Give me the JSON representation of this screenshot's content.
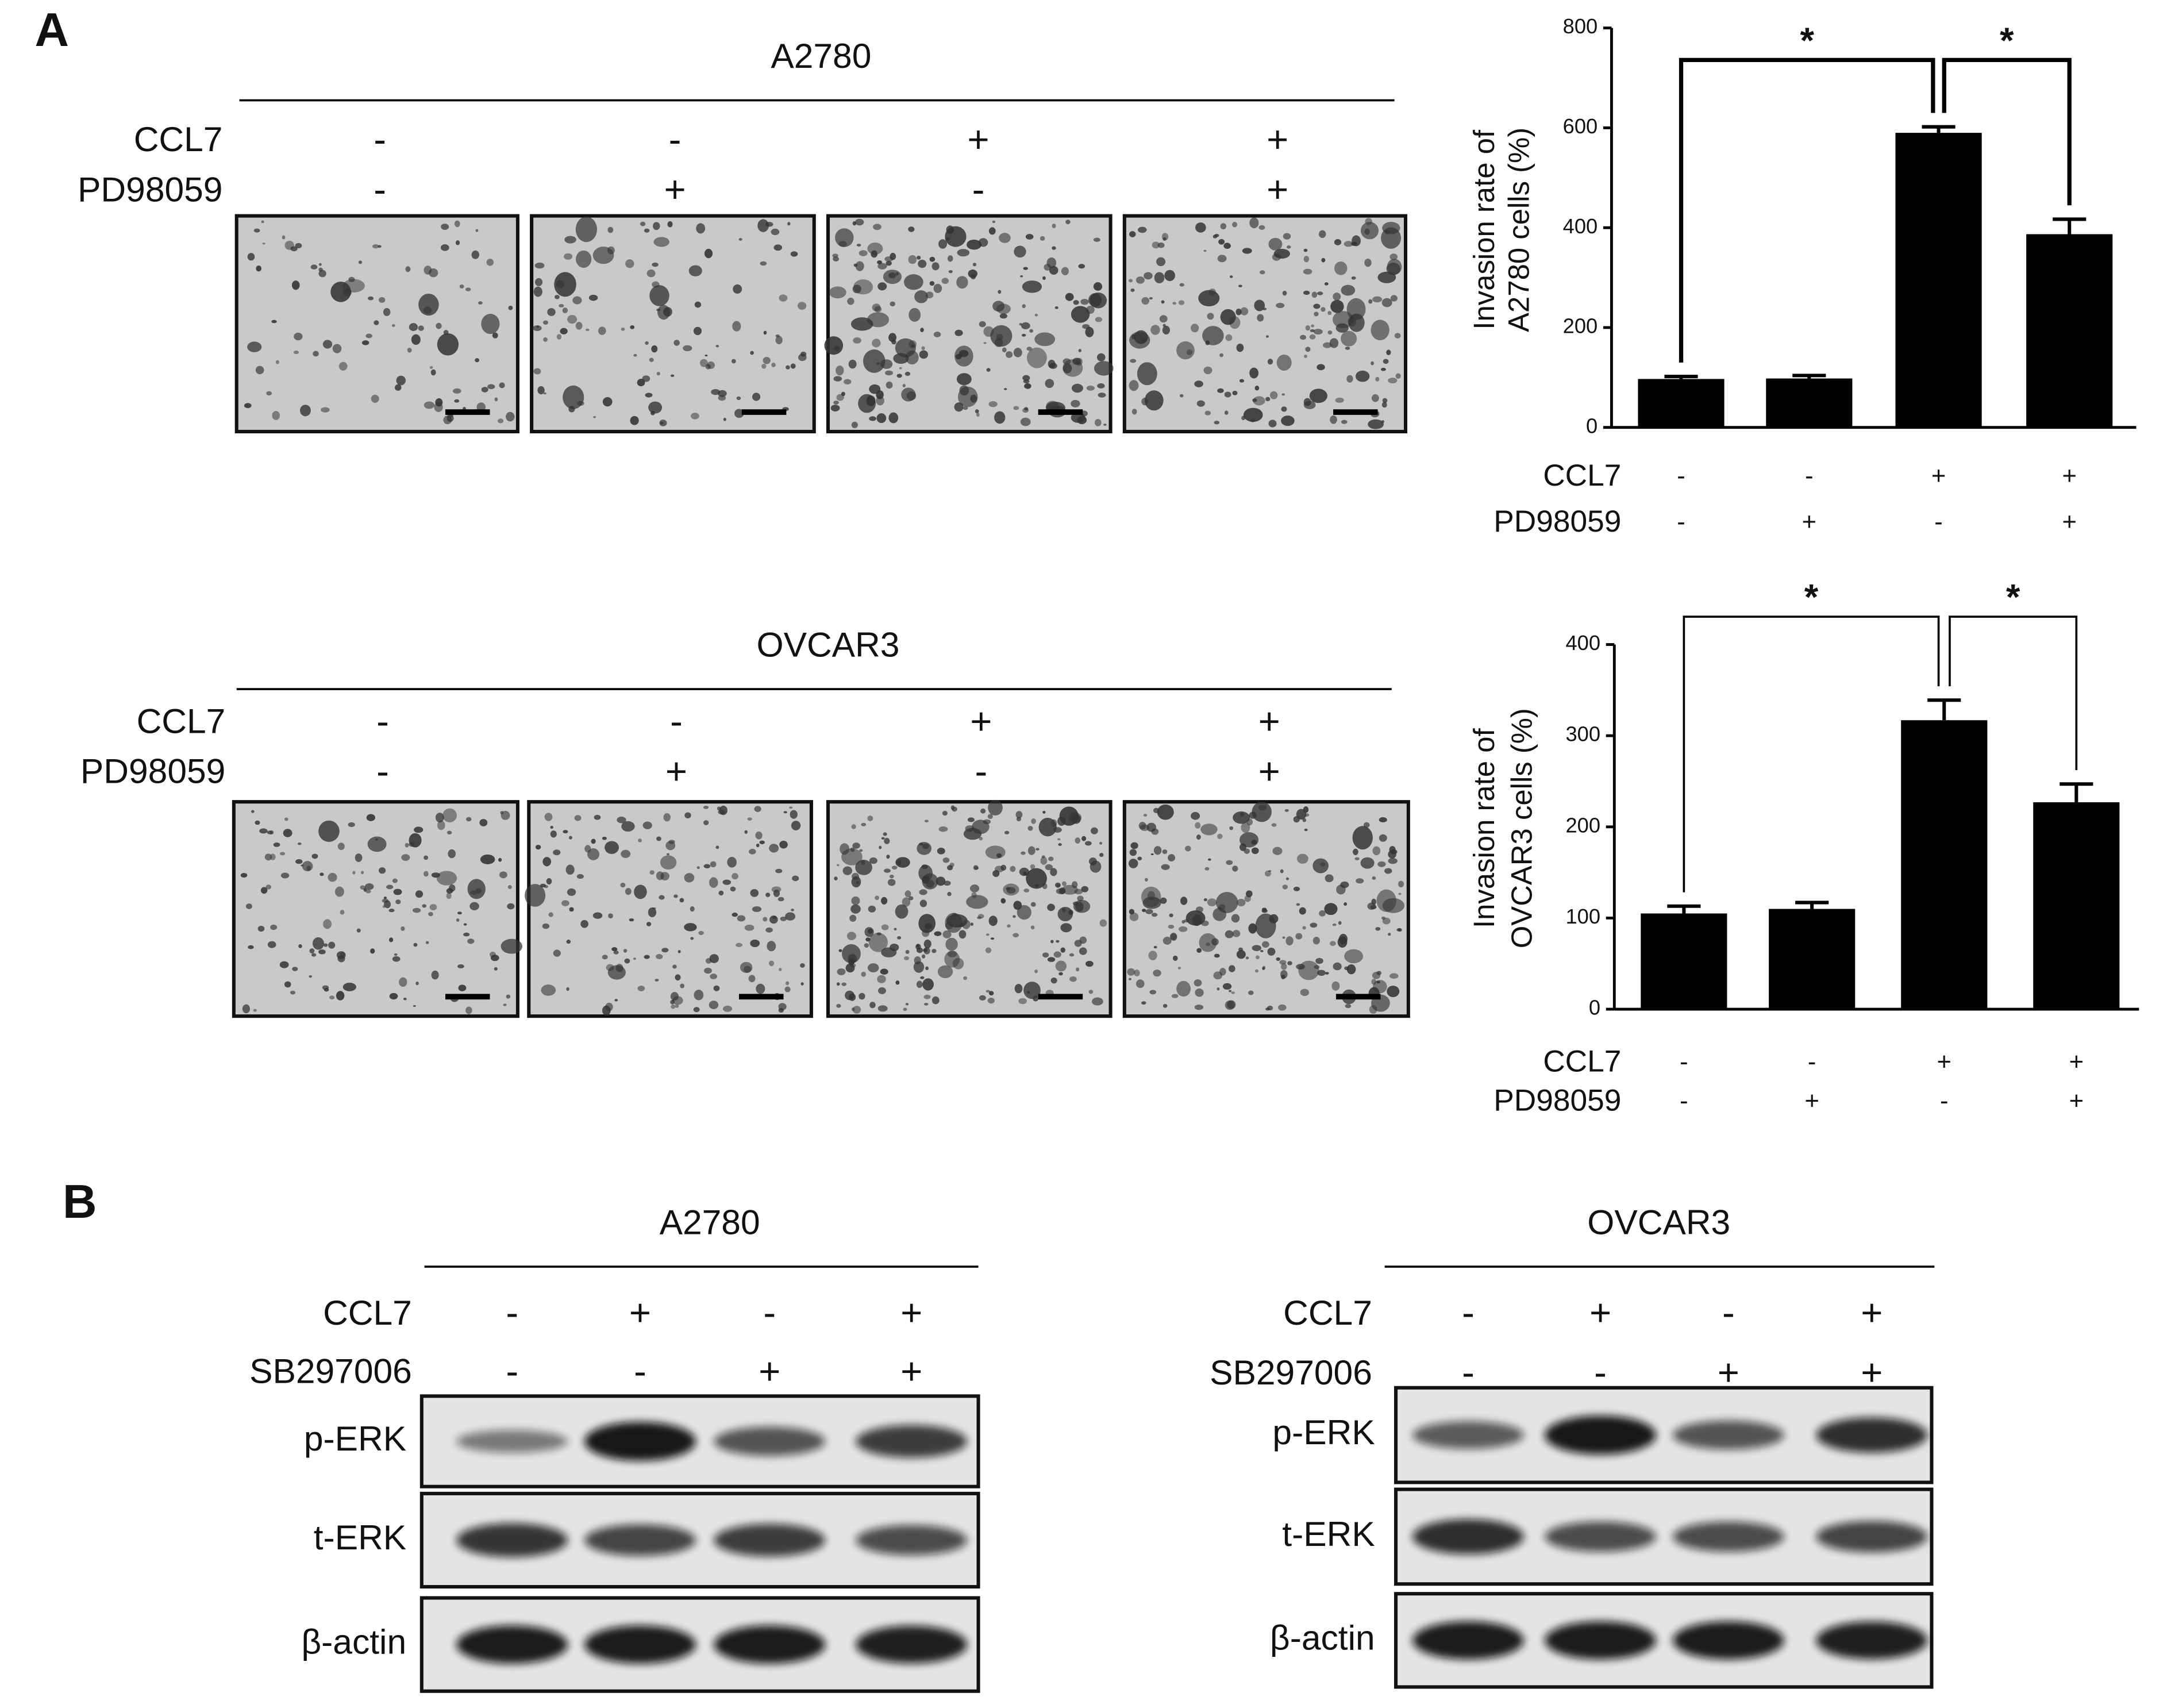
{
  "panel_a": {
    "label": "A",
    "micrographs": [
      {
        "title": "A2780",
        "treatments": [
          {
            "name": "CCL7",
            "signs": [
              "-",
              "-",
              "+",
              "+"
            ]
          },
          {
            "name": "PD98059",
            "signs": [
              "-",
              "+",
              "-",
              "+"
            ]
          }
        ]
      },
      {
        "title": "OVCAR3",
        "treatments": [
          {
            "name": "CCL7",
            "signs": [
              "-",
              "-",
              "+",
              "+"
            ]
          },
          {
            "name": "PD98059",
            "signs": [
              "-",
              "+",
              "-",
              "+"
            ]
          }
        ]
      }
    ]
  },
  "chart_data": [
    {
      "type": "bar",
      "ylabel": [
        "Invasion rate of",
        "A2780 cells  (%)"
      ],
      "treatments": [
        {
          "name": "CCL7",
          "signs": [
            "-",
            "-",
            "+",
            "+"
          ]
        },
        {
          "name": "PD98059",
          "signs": [
            "-",
            "+",
            "-",
            "+"
          ]
        }
      ],
      "values": [
        97,
        98,
        590,
        387
      ],
      "errors": [
        5,
        6,
        12,
        30
      ],
      "color": "#000000",
      "ylim": [
        0,
        800
      ],
      "yticks": [
        0,
        200,
        400,
        600,
        800
      ],
      "annotations": [
        {
          "text": "*",
          "from": 0,
          "to": 2
        },
        {
          "text": "*",
          "from": 2,
          "to": 3
        }
      ]
    },
    {
      "type": "bar",
      "ylabel": [
        "Invasion rate of",
        "OVCAR3 cells  (%)"
      ],
      "treatments": [
        {
          "name": "CCL7",
          "signs": [
            "-",
            "-",
            "+",
            "+"
          ]
        },
        {
          "name": "PD98059",
          "signs": [
            "-",
            "+",
            "-",
            "+"
          ]
        }
      ],
      "values": [
        105,
        110,
        317,
        227
      ],
      "errors": [
        8,
        7,
        22,
        20
      ],
      "color": "#000000",
      "ylim": [
        0,
        400
      ],
      "yticks": [
        0,
        100,
        200,
        300,
        400
      ],
      "annotations": [
        {
          "text": "*",
          "from": 0,
          "to": 2
        },
        {
          "text": "*",
          "from": 2,
          "to": 3
        }
      ]
    }
  ],
  "panel_b": {
    "label": "B",
    "blots": [
      {
        "title": "A2780",
        "treatments": [
          {
            "name": "CCL7",
            "signs": [
              "-",
              "+",
              "-",
              "+"
            ]
          },
          {
            "name": "SB297006",
            "signs": [
              "-",
              "-",
              "+",
              "+"
            ]
          }
        ],
        "rows": [
          "p-ERK",
          "t-ERK",
          "β-actin"
        ]
      },
      {
        "title": "OVCAR3",
        "treatments": [
          {
            "name": "CCL7",
            "signs": [
              "-",
              "+",
              "-",
              "+"
            ]
          },
          {
            "name": "SB297006",
            "signs": [
              "-",
              "-",
              "+",
              "+"
            ]
          }
        ],
        "rows": [
          "p-ERK",
          "t-ERK",
          "β-actin"
        ]
      }
    ]
  }
}
